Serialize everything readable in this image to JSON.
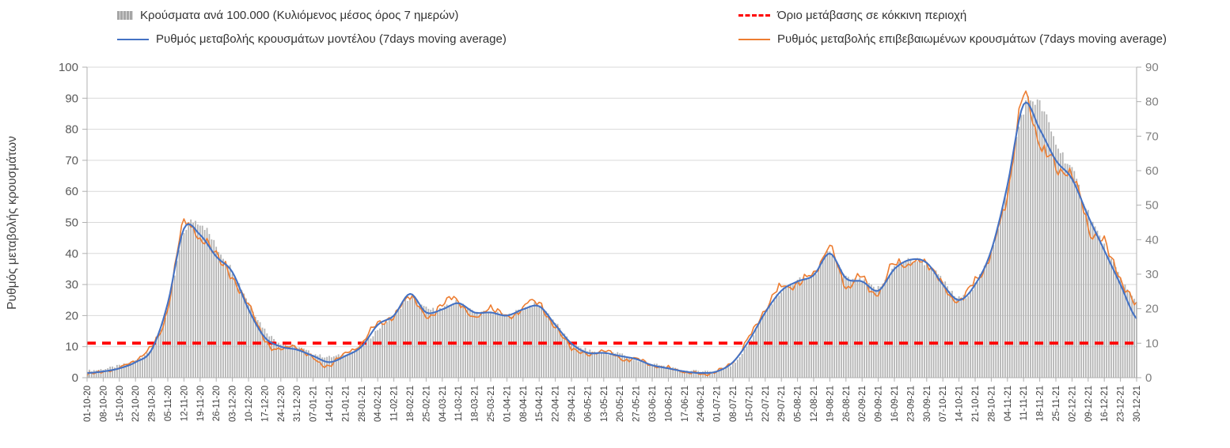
{
  "legend": {
    "items": [
      {
        "label": "Κρούσματα ανά 100.000 (Κυλιόμενος μέσος όρος 7 ημερών)",
        "swatch": "gray-bars"
      },
      {
        "label": "Όριο μετάβασης σε κόκκινη περιοχή",
        "swatch": "red-dashed"
      },
      {
        "label": "Ρυθμός μεταβολής κρουσμάτων μοντέλου (7days moving average)",
        "swatch": "blue-line"
      },
      {
        "label": "Ρυθμός μεταβολής επιβεβαιωμένων κρουσμάτων (7days moving average)",
        "swatch": "orange-line"
      }
    ]
  },
  "axes": {
    "left_title": "Ρυθμός μεταβολής κρουσμάτων",
    "left_ticks": [
      0,
      10,
      20,
      30,
      40,
      50,
      60,
      70,
      80,
      90,
      100
    ],
    "right_ticks": [
      0,
      10,
      20,
      30,
      40,
      50,
      60,
      70,
      80,
      90
    ]
  },
  "colors": {
    "bar": "#b3b3b3",
    "model_line": "#4472c4",
    "confirmed_line": "#ed7d31",
    "threshold": "#ff0000",
    "grid": "#d9d9d9",
    "axis": "#b0b0b0",
    "text_left": "#595959",
    "text_right": "#7f7f7f",
    "text_x": "#404040"
  },
  "chart_data": {
    "type": "bar+line",
    "title": "",
    "xlabel": "",
    "ylabel_left": "Ρυθμός μεταβολής κρουσμάτων",
    "ylim_left": [
      0,
      100
    ],
    "ylim_right": [
      0,
      90
    ],
    "grid": true,
    "legend_position": "top",
    "x_frequency": "weekly ticks, daily bars",
    "x": [
      "01-10-20",
      "08-10-20",
      "15-10-20",
      "22-10-20",
      "29-10-20",
      "05-11-20",
      "12-11-20",
      "19-11-20",
      "26-11-20",
      "03-12-20",
      "10-12-20",
      "17-12-20",
      "24-12-20",
      "31-12-20",
      "07-01-21",
      "14-01-21",
      "21-01-21",
      "28-01-21",
      "04-02-21",
      "11-02-21",
      "18-02-21",
      "25-02-21",
      "04-03-21",
      "11-03-21",
      "18-03-21",
      "25-03-21",
      "01-04-21",
      "08-04-21",
      "15-04-21",
      "22-04-21",
      "29-04-21",
      "06-05-21",
      "13-05-21",
      "20-05-21",
      "27-05-21",
      "03-06-21",
      "10-06-21",
      "17-06-21",
      "24-06-21",
      "01-07-21",
      "08-07-21",
      "15-07-21",
      "22-07-21",
      "29-07-21",
      "05-08-21",
      "12-08-21",
      "19-08-21",
      "26-08-21",
      "02-09-21",
      "09-09-21",
      "16-09-21",
      "23-09-21",
      "30-09-21",
      "07-10-21",
      "14-10-21",
      "21-10-21",
      "28-10-21",
      "04-11-21",
      "11-11-21",
      "18-11-21",
      "25-11-21",
      "02-12-21",
      "09-12-21",
      "16-12-21",
      "23-12-21",
      "30-12-21"
    ],
    "series": [
      {
        "name": "Κρούσματα ανά 100.000 (Κυλιόμενος μέσος όρος 7 ημερών)",
        "type": "bar",
        "axis": "right",
        "color": "#b3b3b3",
        "dataName": "cases-bars",
        "values": [
          2,
          2.5,
          3.5,
          5,
          9,
          20,
          42,
          45,
          38,
          31,
          22,
          14,
          10,
          9,
          7,
          6,
          7,
          9,
          14,
          18,
          23,
          20,
          20,
          22,
          19,
          19,
          18,
          20,
          21,
          16,
          10,
          8,
          7,
          7,
          5,
          4,
          3,
          2,
          2,
          2,
          4,
          10,
          19,
          25,
          28,
          30,
          36,
          29,
          28,
          26,
          32,
          34,
          33,
          28,
          23,
          27,
          37,
          55,
          78,
          79,
          68,
          60,
          48,
          38,
          29,
          22
        ]
      },
      {
        "name": "Ρυθμός μεταβολής κρουσμάτων μοντέλου (7days moving average)",
        "type": "line",
        "axis": "left",
        "color": "#4472c4",
        "noise": false,
        "dataName": "model-line",
        "values": [
          1.5,
          2,
          3,
          5,
          9,
          24,
          48,
          46,
          39,
          34,
          22,
          13,
          10,
          9,
          7,
          5,
          7,
          10,
          17,
          20,
          27,
          21,
          22,
          24,
          21,
          21,
          20,
          22,
          23,
          17,
          11,
          8,
          8,
          7,
          6,
          4,
          3,
          2,
          1.5,
          2,
          5,
          12,
          21,
          28,
          31,
          33,
          40,
          32,
          31,
          28,
          35,
          38,
          37,
          30,
          25,
          30,
          41,
          62,
          88,
          80,
          70,
          64,
          52,
          41,
          30,
          19
        ]
      },
      {
        "name": "Ρυθμός μεταβολής επιβεβαιωμένων κρουσμάτων (7days moving average)",
        "type": "line",
        "axis": "left",
        "color": "#ed7d31",
        "noise": true,
        "dataName": "confirmed-line",
        "values": [
          1,
          2,
          3,
          6,
          10,
          22,
          50,
          44,
          41,
          31,
          24,
          12,
          9,
          10,
          6,
          4,
          8,
          11,
          18,
          19,
          27,
          19,
          24,
          25,
          19,
          23,
          19,
          23,
          24,
          16,
          10,
          7,
          9,
          6,
          6,
          4,
          3,
          2,
          1,
          2,
          5,
          13,
          22,
          29,
          30,
          34,
          41,
          30,
          32,
          27,
          37,
          36,
          38,
          29,
          25,
          31,
          40,
          60,
          89,
          76,
          68,
          66,
          49,
          43,
          32,
          23
        ]
      },
      {
        "name": "Όριο μετάβασης σε κόκκινη περιοχή",
        "type": "threshold",
        "axis": "right",
        "value": 10,
        "color": "#ff0000",
        "dataName": "red-threshold-line"
      }
    ]
  }
}
